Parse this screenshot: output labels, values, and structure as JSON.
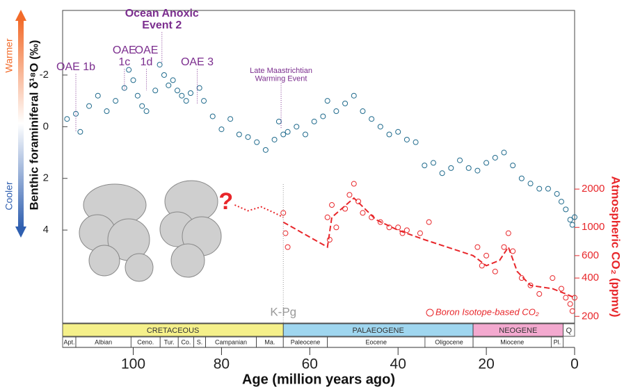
{
  "chart_data": {
    "type": "scatter",
    "xlabel": "Age (million years ago)",
    "ylabel": "Benthic foraminiferal δ¹⁸O (‰)",
    "y2label": "Atmospheric CO₂ (ppmv)",
    "warmer_label": "Warmer",
    "cooler_label": "Cooler",
    "xlim": [
      116,
      0
    ],
    "xticks": [
      100,
      80,
      60,
      40,
      20,
      0
    ],
    "ylim": [
      7.6,
      -4.5
    ],
    "yticks": [
      -2,
      0,
      2,
      4
    ],
    "y2lim": [
      177,
      50700
    ],
    "y2scale": "log",
    "y2ticks": [
      200,
      400,
      600,
      1000,
      2000
    ],
    "series": [
      {
        "color": "#1f6a8c",
        "x": [
          115,
          113,
          112,
          110,
          108,
          106,
          104,
          102,
          101,
          100,
          99,
          98,
          97,
          95,
          94,
          93,
          92,
          91,
          90,
          89,
          88,
          87,
          85,
          84,
          82,
          80,
          78,
          76,
          74,
          72,
          70,
          68,
          67,
          66,
          65,
          63,
          61,
          59,
          57,
          56,
          54,
          52,
          50,
          48,
          46,
          44,
          42,
          40,
          38,
          36,
          34,
          32,
          30,
          28,
          26,
          24,
          22,
          20,
          18,
          16,
          14,
          12,
          10,
          8,
          6,
          4,
          3,
          2,
          1,
          0.5,
          0
        ],
        "values": [
          -0.3,
          -0.5,
          0.2,
          -0.8,
          -1.2,
          -0.6,
          -1.0,
          -1.5,
          -2.2,
          -1.8,
          -1.2,
          -0.8,
          -0.6,
          -1.4,
          -2.4,
          -2.0,
          -1.6,
          -1.8,
          -1.4,
          -1.2,
          -1.0,
          -1.3,
          -1.5,
          -1.0,
          -0.4,
          0.1,
          -0.3,
          0.3,
          0.4,
          0.6,
          0.9,
          0.5,
          -0.2,
          0.3,
          0.2,
          0.0,
          0.3,
          -0.2,
          -0.4,
          -1.0,
          -0.6,
          -0.9,
          -1.2,
          -0.6,
          -0.3,
          0.0,
          0.3,
          0.2,
          0.5,
          0.6,
          1.5,
          1.4,
          1.8,
          1.6,
          1.3,
          1.6,
          1.7,
          1.4,
          1.2,
          1.0,
          1.5,
          2.0,
          2.2,
          2.4,
          2.4,
          2.6,
          2.9,
          3.2,
          3.6,
          3.8,
          3.5
        ]
      },
      {
        "name": "Boron Isotope-based CO₂",
        "color": "#e8262a",
        "axis": "y2",
        "x": [
          66,
          65.5,
          65,
          56,
          55.5,
          55,
          54,
          52,
          51,
          50,
          49,
          48,
          46,
          44,
          42,
          40,
          39,
          38,
          35,
          33,
          22,
          21,
          20,
          18,
          16,
          15,
          14,
          12,
          10,
          8,
          5,
          3,
          2,
          1,
          0.5,
          0
        ],
        "values": [
          1300,
          900,
          700,
          1200,
          800,
          1500,
          1000,
          1400,
          1800,
          2200,
          1600,
          1300,
          1200,
          1100,
          1000,
          1000,
          900,
          950,
          900,
          1100,
          700,
          500,
          600,
          450,
          700,
          900,
          650,
          400,
          350,
          300,
          400,
          330,
          280,
          250,
          220,
          280
        ]
      },
      {
        "color": "#e8262a",
        "axis": "y2",
        "style": "dashed",
        "x": [
          66,
          56,
          55,
          50,
          45,
          40,
          34,
          23,
          20,
          17,
          15,
          13,
          10,
          5,
          2,
          0
        ],
        "values": [
          1100,
          700,
          1200,
          1700,
          1150,
          950,
          800,
          600,
          500,
          550,
          700,
          450,
          350,
          330,
          300,
          280
        ]
      },
      {
        "color": "#e8262a",
        "axis": "y2",
        "style": "dotted",
        "x": [
          77,
          74,
          71,
          68,
          66
        ],
        "values": [
          1500,
          1350,
          1450,
          1300,
          1200
        ]
      }
    ],
    "annotations": [
      {
        "lines": [
          "OAE 1b"
        ],
        "x": 113,
        "color": "#7b2d8e"
      },
      {
        "lines": [
          "OAE",
          "1c"
        ],
        "x": 102,
        "color": "#7b2d8e"
      },
      {
        "lines": [
          "OAE",
          "1d"
        ],
        "x": 97,
        "color": "#7b2d8e"
      },
      {
        "lines": [
          "Ocean Anoxic",
          "Event 2"
        ],
        "x": 93.5,
        "color": "#7b2d8e"
      },
      {
        "lines": [
          "OAE 3"
        ],
        "x": 85.5,
        "color": "#7b2d8e"
      },
      {
        "lines": [
          "Late Maastrichtian",
          "Warming Event"
        ],
        "x": 66.5,
        "color": "#7b2d8e"
      },
      {
        "lines": [
          "K-Pg"
        ],
        "x": 66,
        "color": "#999999"
      },
      {
        "lines": [
          "?"
        ],
        "x": 79,
        "color": "#e8262a"
      }
    ],
    "periods": [
      {
        "name": "CRETACEOUS",
        "start": 116,
        "end": 66,
        "color": "#f5f08a"
      },
      {
        "name": "PALAEOGENE",
        "start": 66,
        "end": 23,
        "color": "#9fd6ef"
      },
      {
        "name": "NEOGENE",
        "start": 23,
        "end": 2.6,
        "color": "#f3a9cf"
      },
      {
        "name": "Q",
        "start": 2.6,
        "end": 0,
        "color": "#ffffff"
      }
    ],
    "stages": [
      {
        "name": "Apt.",
        "start": 116,
        "end": 113
      },
      {
        "name": "Albian",
        "start": 113,
        "end": 100.5
      },
      {
        "name": "Ceno.",
        "start": 100.5,
        "end": 93.9
      },
      {
        "name": "Tur.",
        "start": 93.9,
        "end": 89.8
      },
      {
        "name": "Co.",
        "start": 89.8,
        "end": 86.3
      },
      {
        "name": "S.",
        "start": 86.3,
        "end": 83.6
      },
      {
        "name": "Campanian",
        "start": 83.6,
        "end": 72.1
      },
      {
        "name": "Ma.",
        "start": 72.1,
        "end": 66
      },
      {
        "name": "Paleocene",
        "start": 66,
        "end": 56
      },
      {
        "name": "Eocene",
        "start": 56,
        "end": 33.9
      },
      {
        "name": "Oligocene",
        "start": 33.9,
        "end": 23
      },
      {
        "name": "Miocene",
        "start": 23,
        "end": 5.3
      },
      {
        "name": "Pl.",
        "start": 5.3,
        "end": 2.6
      }
    ]
  }
}
